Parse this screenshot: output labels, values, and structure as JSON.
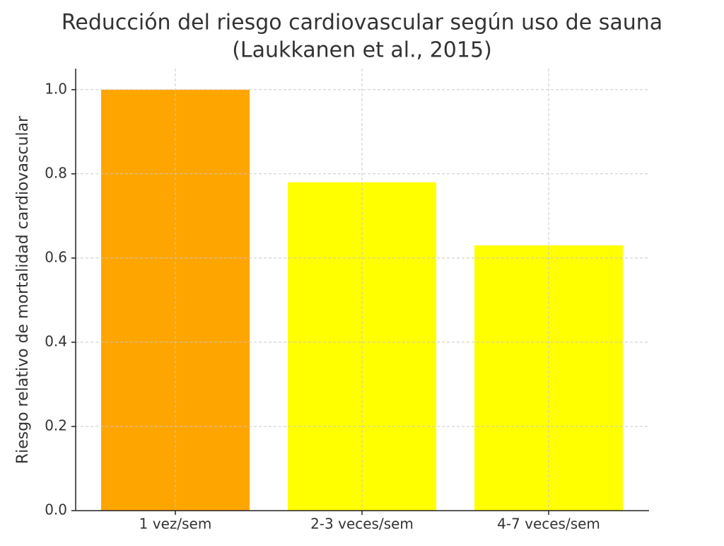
{
  "chart_data": {
    "type": "bar",
    "title": [
      "Reducción del riesgo cardiovascular según uso de sauna",
      "(Laukkanen et al., 2015)"
    ],
    "y_label": "Riesgo relativo de mortalidad cardiovascular",
    "categories": [
      "1 vez/sem",
      "2-3 veces/sem",
      "4-7 veces/sem"
    ],
    "values": [
      1.0,
      0.78,
      0.63
    ],
    "colors": [
      "#ffa500",
      "#ffff00",
      "#ffff00"
    ],
    "ylim": [
      0,
      1.05
    ],
    "yticks": [
      {
        "value": 0,
        "label": "0.0"
      },
      0.2,
      0.4,
      0.6,
      0.8,
      {
        "value": 1,
        "label": "1.0"
      }
    ],
    "grid": true
  }
}
